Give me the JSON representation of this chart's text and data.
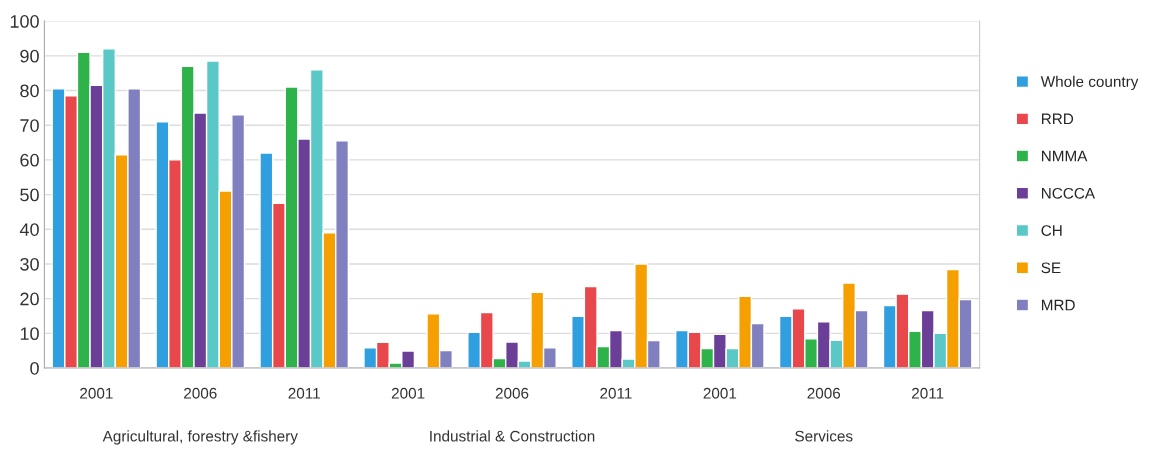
{
  "chart_data": {
    "type": "bar",
    "categories": [
      "2001",
      "2006",
      "2011",
      "2001",
      "2006",
      "2011",
      "2001",
      "2006",
      "2011"
    ],
    "annotations": [
      "Agricultural, forestry &fishery",
      "Industrial & Construction",
      "Services"
    ],
    "series": [
      {
        "name": "Whole country",
        "color": "#2f9fe0",
        "values": [
          80.5,
          71,
          62,
          5.8,
          10.3,
          14.9,
          10.8,
          14.9,
          18
        ]
      },
      {
        "name": "RRD",
        "color": "#e8474c",
        "values": [
          78.5,
          60,
          47.5,
          7.4,
          16,
          23.5,
          10.3,
          17.1,
          21.3
        ]
      },
      {
        "name": "NMMA",
        "color": "#2db34a",
        "values": [
          91,
          87,
          81,
          1.4,
          2.7,
          6.2,
          5.6,
          8.4,
          10.6
        ]
      },
      {
        "name": "NCCCA",
        "color": "#6b3f97",
        "values": [
          81.5,
          73.5,
          66,
          4.9,
          7.5,
          10.8,
          9.7,
          13.3,
          16.6
        ]
      },
      {
        "name": "CH",
        "color": "#5bc8c8",
        "values": [
          92,
          88.5,
          86,
          null,
          2,
          2.6,
          5.6,
          8,
          10
        ]
      },
      {
        "name": "SE",
        "color": "#f5a000",
        "values": [
          61.5,
          51,
          39,
          15.6,
          21.8,
          30,
          20.7,
          24.5,
          28.4
        ]
      },
      {
        "name": "MRD",
        "color": "#8080c0",
        "values": [
          80.5,
          73,
          65.5,
          5,
          5.8,
          7.9,
          12.8,
          16.6,
          19.7
        ]
      }
    ],
    "ylim": [
      0,
      100
    ],
    "yticks": [
      0,
      10,
      20,
      30,
      40,
      50,
      60,
      70,
      80,
      90,
      100
    ],
    "grid": "y",
    "legend": "right"
  }
}
